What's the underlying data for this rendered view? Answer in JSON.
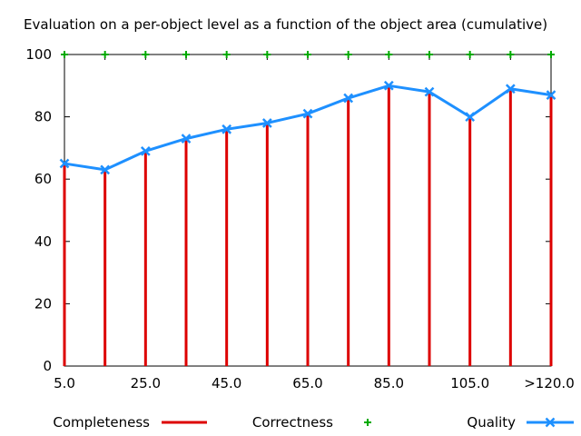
{
  "chart_data": {
    "type": "bar",
    "title": "Evaluation on a per-object level as a function of the object area (cumulative)",
    "xlabel": "",
    "ylabel": "",
    "ylim": [
      0,
      100
    ],
    "yticks": [
      "0",
      "20",
      "40",
      "60",
      "80",
      "100"
    ],
    "categories": [
      "5.0",
      "15.0",
      "25.0",
      "35.0",
      "45.0",
      "55.0",
      "65.0",
      "75.0",
      "85.0",
      "95.0",
      "105.0",
      "115.0",
      ">120.0"
    ],
    "xtick_labels": [
      "5.0",
      "25.0",
      "45.0",
      "65.0",
      "85.0",
      "105.0",
      ">120.0"
    ],
    "grid": false,
    "legend_placement": "bottom",
    "series": [
      {
        "name": "Completeness",
        "type": "impulse",
        "color": "#dd0000",
        "values": [
          65,
          63,
          69,
          73,
          76,
          78,
          81,
          86,
          90,
          88,
          80,
          89,
          87
        ]
      },
      {
        "name": "Correctness",
        "type": "points",
        "color": "#00aa00",
        "values": [
          100,
          100,
          100,
          100,
          100,
          100,
          100,
          100,
          100,
          100,
          100,
          100,
          100
        ]
      },
      {
        "name": "Quality",
        "type": "linespoints",
        "color": "#1e90ff",
        "values": [
          65,
          63,
          69,
          73,
          76,
          78,
          81,
          86,
          90,
          88,
          80,
          89,
          87
        ]
      }
    ]
  }
}
